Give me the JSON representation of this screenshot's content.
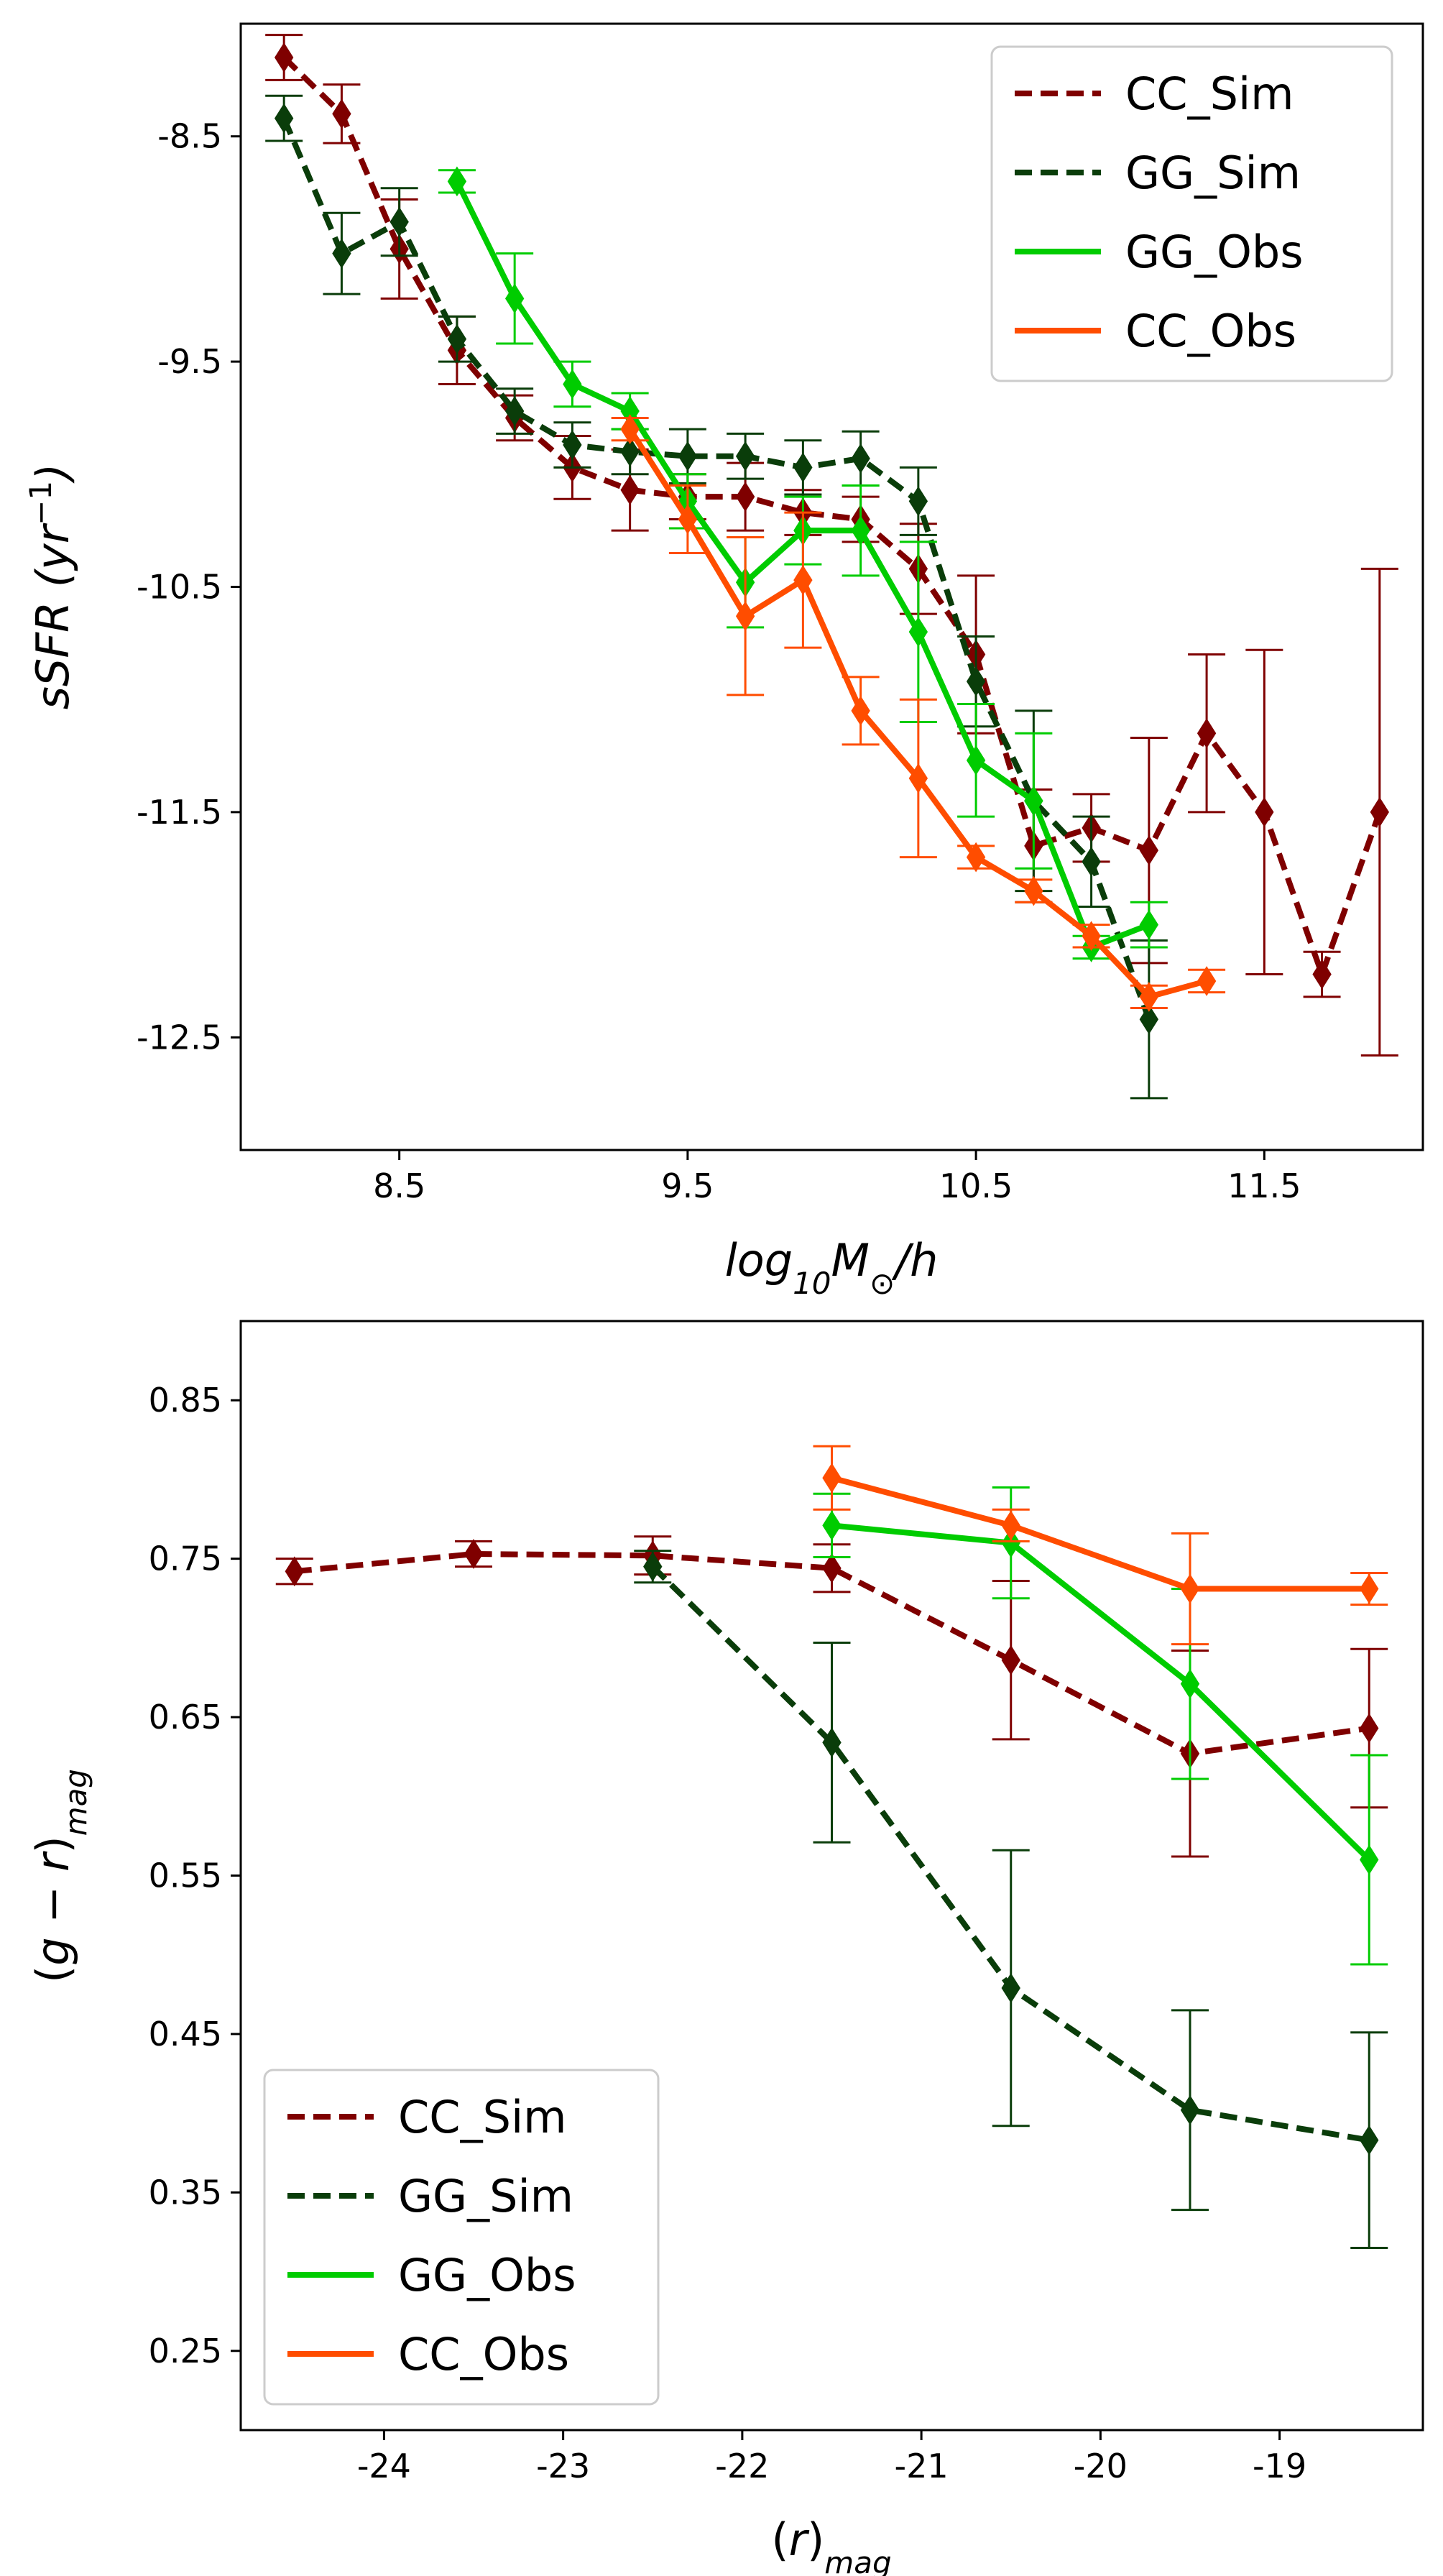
{
  "chart_data": [
    {
      "type": "line",
      "name": "ssfr-vs-mass",
      "xlabel": "log10M⊙/h",
      "ylabel": "sSFR (yr⁻¹)",
      "xlim": [
        7.95,
        12.05
      ],
      "ylim": [
        -13.0,
        -8.0
      ],
      "xticks": [
        8.5,
        9.5,
        10.5,
        11.5
      ],
      "xtick_labels": [
        "8.5",
        "9.5",
        "10.5",
        "11.5"
      ],
      "yticks": [
        -8.5,
        -9.5,
        -10.5,
        -11.5,
        -12.5
      ],
      "ytick_labels": [
        "-8.5",
        "-9.5",
        "-10.5",
        "-11.5",
        "-12.5"
      ],
      "legend_position": "top-right",
      "series": [
        {
          "name": "CC_Sim",
          "color": "#7f0000",
          "dash": true,
          "x": [
            8.1,
            8.3,
            8.5,
            8.7,
            8.9,
            9.1,
            9.3,
            9.5,
            9.7,
            9.9,
            10.1,
            10.3,
            10.5,
            10.7,
            10.9,
            11.1,
            11.3,
            11.5,
            11.7,
            11.9
          ],
          "y": [
            -8.15,
            -8.4,
            -9.0,
            -9.45,
            -9.75,
            -9.97,
            -10.07,
            -10.1,
            -10.1,
            -10.17,
            -10.2,
            -10.42,
            -10.8,
            -11.65,
            -11.57,
            -11.67,
            -11.15,
            -11.5,
            -12.22,
            -11.5
          ],
          "err": [
            0.1,
            0.13,
            0.22,
            0.15,
            0.1,
            0.14,
            0.18,
            0.1,
            0.15,
            0.1,
            0.1,
            0.2,
            0.35,
            0.25,
            0.15,
            0.5,
            0.35,
            0.72,
            0.1,
            1.08
          ]
        },
        {
          "name": "GG_Sim",
          "color": "#0a3d0a",
          "dash": true,
          "x": [
            8.1,
            8.3,
            8.5,
            8.7,
            8.9,
            9.1,
            9.3,
            9.5,
            9.7,
            9.9,
            10.1,
            10.3,
            10.5,
            10.7,
            10.9,
            11.1
          ],
          "y": [
            -8.42,
            -9.02,
            -8.88,
            -9.4,
            -9.72,
            -9.87,
            -9.9,
            -9.92,
            -9.92,
            -9.97,
            -9.93,
            -10.12,
            -10.92,
            -11.45,
            -11.72,
            -12.42
          ],
          "err": [
            0.1,
            0.18,
            0.15,
            0.1,
            0.1,
            0.1,
            0.1,
            0.12,
            0.1,
            0.12,
            0.12,
            0.15,
            0.2,
            0.4,
            0.2,
            0.35
          ]
        },
        {
          "name": "GG_Obs",
          "color": "#00cc00",
          "dash": false,
          "x": [
            8.7,
            8.9,
            9.1,
            9.3,
            9.5,
            9.7,
            9.9,
            10.1,
            10.3,
            10.5,
            10.7,
            10.9,
            11.1
          ],
          "y": [
            -8.7,
            -9.22,
            -9.6,
            -9.72,
            -10.12,
            -10.48,
            -10.25,
            -10.25,
            -10.7,
            -11.27,
            -11.45,
            -12.1,
            -12.0
          ],
          "err": [
            0.05,
            0.2,
            0.1,
            0.08,
            0.12,
            0.2,
            0.15,
            0.2,
            0.4,
            0.25,
            0.3,
            0.05,
            0.1
          ]
        },
        {
          "name": "CC_Obs",
          "color": "#ff4d00",
          "dash": false,
          "x": [
            9.3,
            9.5,
            9.7,
            9.9,
            10.1,
            10.3,
            10.5,
            10.7,
            10.9,
            11.1,
            11.3
          ],
          "y": [
            -9.8,
            -10.2,
            -10.63,
            -10.47,
            -11.05,
            -11.35,
            -11.7,
            -11.85,
            -12.05,
            -12.32,
            -12.25
          ],
          "err": [
            0.05,
            0.15,
            0.35,
            0.3,
            0.15,
            0.35,
            0.05,
            0.05,
            0.05,
            0.05,
            0.05
          ]
        }
      ]
    },
    {
      "type": "line",
      "name": "color-vs-magnitude",
      "xlabel": "(r)mag",
      "ylabel": "(g − r)mag",
      "xlim": [
        -24.8,
        -18.2
      ],
      "ylim": [
        0.2,
        0.9
      ],
      "xticks": [
        -24,
        -23,
        -22,
        -21,
        -20,
        -19
      ],
      "xtick_labels": [
        "-24",
        "-23",
        "-22",
        "-21",
        "-20",
        "-19"
      ],
      "yticks": [
        0.85,
        0.75,
        0.65,
        0.55,
        0.45,
        0.35,
        0.25
      ],
      "ytick_labels": [
        "0.85",
        "0.75",
        "0.65",
        "0.55",
        "0.45",
        "0.35",
        "0.25"
      ],
      "legend_position": "bottom-left",
      "series": [
        {
          "name": "CC_Sim",
          "color": "#7f0000",
          "dash": true,
          "x": [
            -24.5,
            -23.5,
            -22.5,
            -21.5,
            -20.5,
            -19.5,
            -18.5
          ],
          "y": [
            0.742,
            0.753,
            0.752,
            0.744,
            0.686,
            0.627,
            0.643
          ],
          "err": [
            0.008,
            0.008,
            0.012,
            0.015,
            0.05,
            0.065,
            0.05
          ]
        },
        {
          "name": "GG_Sim",
          "color": "#0a3d0a",
          "dash": true,
          "x": [
            -22.5,
            -21.5,
            -20.5,
            -19.5,
            -18.5
          ],
          "y": [
            0.745,
            0.634,
            0.479,
            0.402,
            0.383
          ],
          "err": [
            0.01,
            0.063,
            0.087,
            0.063,
            0.068
          ]
        },
        {
          "name": "GG_Obs",
          "color": "#00cc00",
          "dash": false,
          "x": [
            -21.5,
            -20.5,
            -19.5,
            -18.5
          ],
          "y": [
            0.771,
            0.76,
            0.671,
            0.56
          ],
          "err": [
            0.02,
            0.035,
            0.06,
            0.066
          ]
        },
        {
          "name": "CC_Obs",
          "color": "#ff4d00",
          "dash": false,
          "x": [
            -21.5,
            -20.5,
            -19.5,
            -18.5
          ],
          "y": [
            0.801,
            0.771,
            0.731,
            0.731
          ],
          "err": [
            0.02,
            0.01,
            0.035,
            0.01
          ]
        }
      ]
    }
  ]
}
